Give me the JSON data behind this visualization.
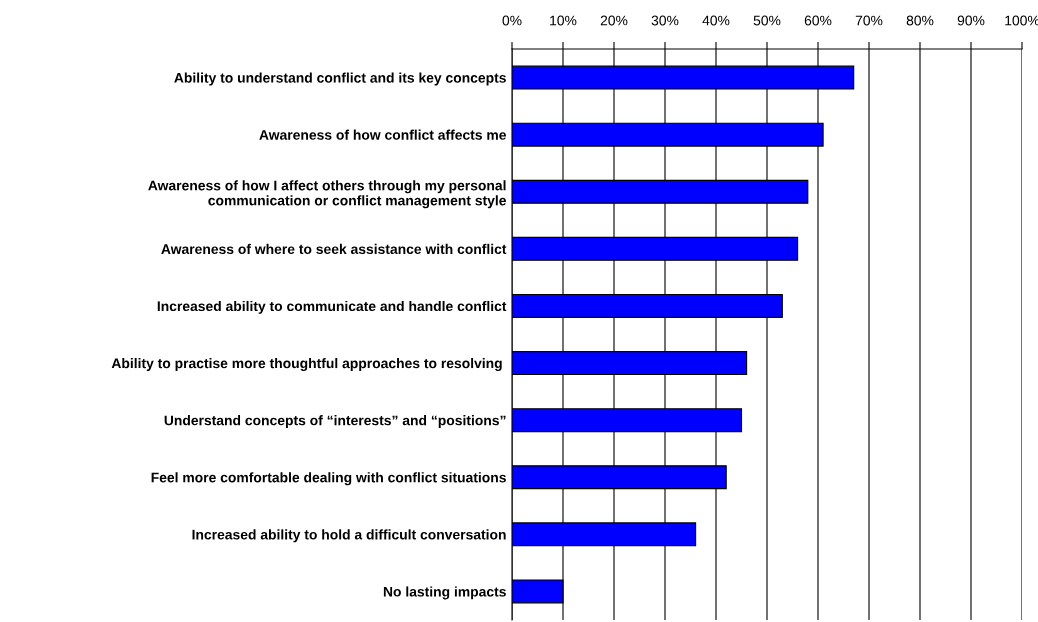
{
  "chart_data": {
    "type": "bar",
    "orientation": "horizontal",
    "categories": [
      "Ability to understand conflict and its key concepts",
      "Awareness of how conflict affects me",
      "Awareness of how I affect others through my personal\ncommunication or conflict management style",
      "Awareness of where to seek assistance with conflict",
      "Increased ability to communicate and handle conflict",
      "Ability to practise more thoughtful approaches to resolving ",
      "Understand concepts of “interests” and “positions”",
      "Feel more comfortable dealing with conflict situations",
      "Increased ability to hold a difficult conversation",
      "No lasting impacts"
    ],
    "values": [
      0.67,
      0.61,
      0.58,
      0.56,
      0.53,
      0.46,
      0.45,
      0.42,
      0.36,
      0.1
    ],
    "color": "#0000ff",
    "xlim": [
      0,
      1
    ],
    "xticks": [
      {
        "value": 0,
        "label": "0%"
      },
      {
        "value": 0.1,
        "label": "10%"
      },
      {
        "value": 0.2,
        "label": "20%"
      },
      {
        "value": 0.3,
        "label": "30%"
      },
      {
        "value": 0.4,
        "label": "40%"
      },
      {
        "value": 0.5,
        "label": "50%"
      },
      {
        "value": 0.6,
        "label": "60%"
      },
      {
        "value": 0.7,
        "label": "70%"
      },
      {
        "value": 0.8,
        "label": "80%"
      },
      {
        "value": 0.9,
        "label": "90%"
      },
      {
        "value": 1,
        "label": "100%"
      }
    ],
    "grid": "x"
  }
}
